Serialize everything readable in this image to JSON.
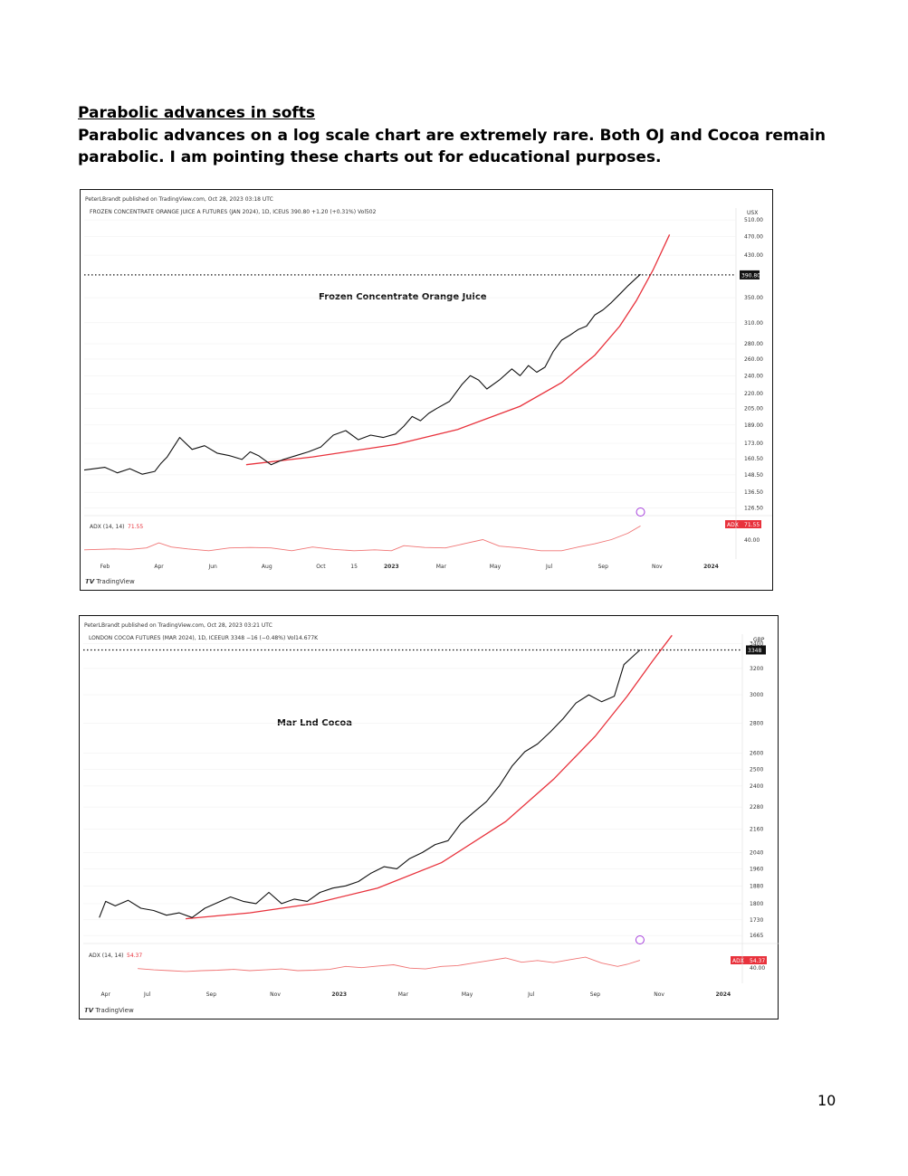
{
  "document": {
    "heading": "Parabolic advances in softs",
    "intro": "Parabolic advances on a log scale chart are extremely rare. Both OJ and Cocoa remain parabolic. I am pointing these charts out for educational purposes.",
    "page_number": "10"
  },
  "colors": {
    "price": "#111111",
    "curve": "#e8323c",
    "adx": "#f07474",
    "grid": "#eeeeee",
    "axis_text": "#333333",
    "marker": "#a63fdc"
  },
  "chart_data": [
    {
      "type": "line",
      "published": "PeterLBrandt published on TradingView.com, Oct 28, 2023 03:18 UTC",
      "symbol_line": "FROZEN CONCENTRATE ORANGE JUICE A FUTURES (JAN 2024), 1D, ICEUS  390.80  +1.20 (+0.31%)  Vol502",
      "annotation": "Frozen Concentrate Orange Juice",
      "currency": "USX",
      "y_scale": "log",
      "ylim": [
        123,
        540
      ],
      "y_ticks": [
        "510.00",
        "470.00",
        "430.00",
        "350.00",
        "310.00",
        "280.00",
        "260.00",
        "240.00",
        "220.00",
        "205.00",
        "189.00",
        "173.00",
        "160.50",
        "148.50",
        "136.50",
        "126.50"
      ],
      "last_price_label": "390.80",
      "last_price": 390.8,
      "x_ticks": [
        "Feb",
        "Apr",
        "Jun",
        "Aug",
        "Oct",
        "15",
        "2023",
        "Mar",
        "May",
        "Jul",
        "Sep",
        "Nov",
        "2024"
      ],
      "x_tick_t": [
        0.0,
        0.13,
        0.26,
        0.39,
        0.52,
        0.6,
        0.69,
        0.81,
        0.94,
        1.07,
        1.2,
        1.33,
        1.46
      ],
      "t_range": [
        -0.05,
        1.52
      ],
      "price_series": {
        "t": [
          -0.05,
          0.0,
          0.03,
          0.06,
          0.09,
          0.12,
          0.135,
          0.15,
          0.18,
          0.21,
          0.24,
          0.27,
          0.3,
          0.33,
          0.35,
          0.37,
          0.4,
          0.43,
          0.46,
          0.49,
          0.52,
          0.55,
          0.58,
          0.61,
          0.64,
          0.67,
          0.7,
          0.72,
          0.74,
          0.76,
          0.78,
          0.8,
          0.83,
          0.86,
          0.88,
          0.9,
          0.92,
          0.95,
          0.98,
          1.0,
          1.02,
          1.04,
          1.06,
          1.08,
          1.1,
          1.12,
          1.14,
          1.16,
          1.18,
          1.2,
          1.22,
          1.24,
          1.26,
          1.28,
          1.29
        ],
        "values": [
          152,
          154,
          150,
          153,
          149,
          151,
          157,
          162,
          178,
          168,
          171,
          165,
          163,
          160,
          166,
          163,
          156,
          160,
          163,
          166,
          170,
          180,
          184,
          176,
          180,
          178,
          181,
          188,
          197,
          193,
          200,
          205,
          212,
          230,
          240,
          235,
          225,
          235,
          248,
          240,
          252,
          244,
          250,
          270,
          285,
          292,
          300,
          305,
          322,
          330,
          342,
          356,
          371,
          385,
          392
        ]
      },
      "curve": {
        "t": [
          0.34,
          0.5,
          0.7,
          0.85,
          1.0,
          1.1,
          1.18,
          1.24,
          1.28,
          1.32,
          1.36
        ],
        "values": [
          156,
          162,
          172,
          185,
          207,
          232,
          265,
          305,
          345,
          400,
          475
        ]
      },
      "adx": {
        "label": "ADX (14, 14)",
        "value_label": "71.55",
        "badge": "ADX",
        "tick": "40.00",
        "t": [
          -0.05,
          0.02,
          0.06,
          0.1,
          0.13,
          0.16,
          0.2,
          0.25,
          0.3,
          0.35,
          0.4,
          0.45,
          0.5,
          0.55,
          0.6,
          0.65,
          0.69,
          0.72,
          0.77,
          0.82,
          0.87,
          0.91,
          0.95,
          1.0,
          1.05,
          1.1,
          1.14,
          1.18,
          1.22,
          1.26,
          1.29
        ],
        "values": [
          20,
          22,
          21,
          24,
          35,
          26,
          22,
          18,
          24,
          25,
          24,
          18,
          26,
          21,
          18,
          20,
          18,
          29,
          25,
          24,
          34,
          42,
          28,
          24,
          18,
          18,
          26,
          33,
          42,
          56,
          71.55
        ]
      }
    },
    {
      "type": "line",
      "published": "PeterLBrandt published on TradingView.com, Oct 28, 2023 03:21 UTC",
      "symbol_line": "LONDON COCOA FUTURES (MAR 2024), 1D, ICEEUR  3348  −16 (−0.48%)  Vol14.677K",
      "annotation": "Mar Lnd Cocoa",
      "currency": "GBP",
      "y_scale": "log",
      "ylim": [
        1640,
        3480
      ],
      "y_ticks": [
        "3400",
        "3200",
        "3000",
        "2800",
        "2600",
        "2500",
        "2400",
        "2280",
        "2160",
        "2040",
        "1960",
        "1880",
        "1800",
        "1730",
        "1665"
      ],
      "last_price_label": "3348",
      "last_price": 3348,
      "x_ticks": [
        "Apr",
        "Jul",
        "Sep",
        "Nov",
        "2023",
        "Mar",
        "May",
        "Jul",
        "Sep",
        "Nov",
        "2024"
      ],
      "x_tick_t": [
        0.05,
        0.18,
        0.38,
        0.58,
        0.78,
        0.98,
        1.18,
        1.38,
        1.58,
        1.78,
        1.98
      ],
      "t_range": [
        -0.02,
        2.04
      ],
      "price_series": {
        "t": [
          0.03,
          0.05,
          0.08,
          0.12,
          0.16,
          0.2,
          0.24,
          0.28,
          0.32,
          0.36,
          0.4,
          0.44,
          0.48,
          0.52,
          0.56,
          0.6,
          0.64,
          0.68,
          0.72,
          0.76,
          0.8,
          0.84,
          0.88,
          0.92,
          0.96,
          1.0,
          1.04,
          1.08,
          1.12,
          1.16,
          1.2,
          1.24,
          1.28,
          1.32,
          1.36,
          1.4,
          1.44,
          1.48,
          1.52,
          1.56,
          1.6,
          1.64,
          1.67,
          1.7,
          1.72
        ],
        "values": [
          1740,
          1810,
          1790,
          1815,
          1780,
          1770,
          1750,
          1760,
          1740,
          1780,
          1805,
          1830,
          1810,
          1800,
          1850,
          1800,
          1820,
          1810,
          1850,
          1870,
          1880,
          1900,
          1940,
          1970,
          1960,
          2010,
          2040,
          2080,
          2100,
          2190,
          2250,
          2310,
          2400,
          2520,
          2610,
          2660,
          2740,
          2830,
          2940,
          3000,
          2950,
          2990,
          3230,
          3300,
          3348
        ]
      },
      "curve": {
        "t": [
          0.3,
          0.5,
          0.7,
          0.9,
          1.1,
          1.3,
          1.45,
          1.58,
          1.68,
          1.76,
          1.82
        ],
        "values": [
          1735,
          1760,
          1800,
          1870,
          1990,
          2200,
          2440,
          2710,
          2990,
          3260,
          3470
        ]
      },
      "adx": {
        "label": "ADX (14, 14)",
        "value_label": "54.37",
        "badge": "ADX",
        "tick": "40.00",
        "t": [
          0.15,
          0.2,
          0.25,
          0.3,
          0.35,
          0.4,
          0.45,
          0.5,
          0.55,
          0.6,
          0.65,
          0.7,
          0.75,
          0.8,
          0.85,
          0.9,
          0.95,
          1.0,
          1.05,
          1.1,
          1.15,
          1.2,
          1.25,
          1.3,
          1.35,
          1.4,
          1.45,
          1.5,
          1.55,
          1.6,
          1.65,
          1.68,
          1.72
        ],
        "values": [
          35,
          32,
          30,
          28,
          30,
          31,
          33,
          30,
          32,
          34,
          30,
          31,
          33,
          40,
          37,
          41,
          44,
          36,
          34,
          40,
          42,
          48,
          54,
          60,
          50,
          54,
          49,
          56,
          62,
          48,
          40,
          45,
          54.37
        ]
      }
    }
  ]
}
